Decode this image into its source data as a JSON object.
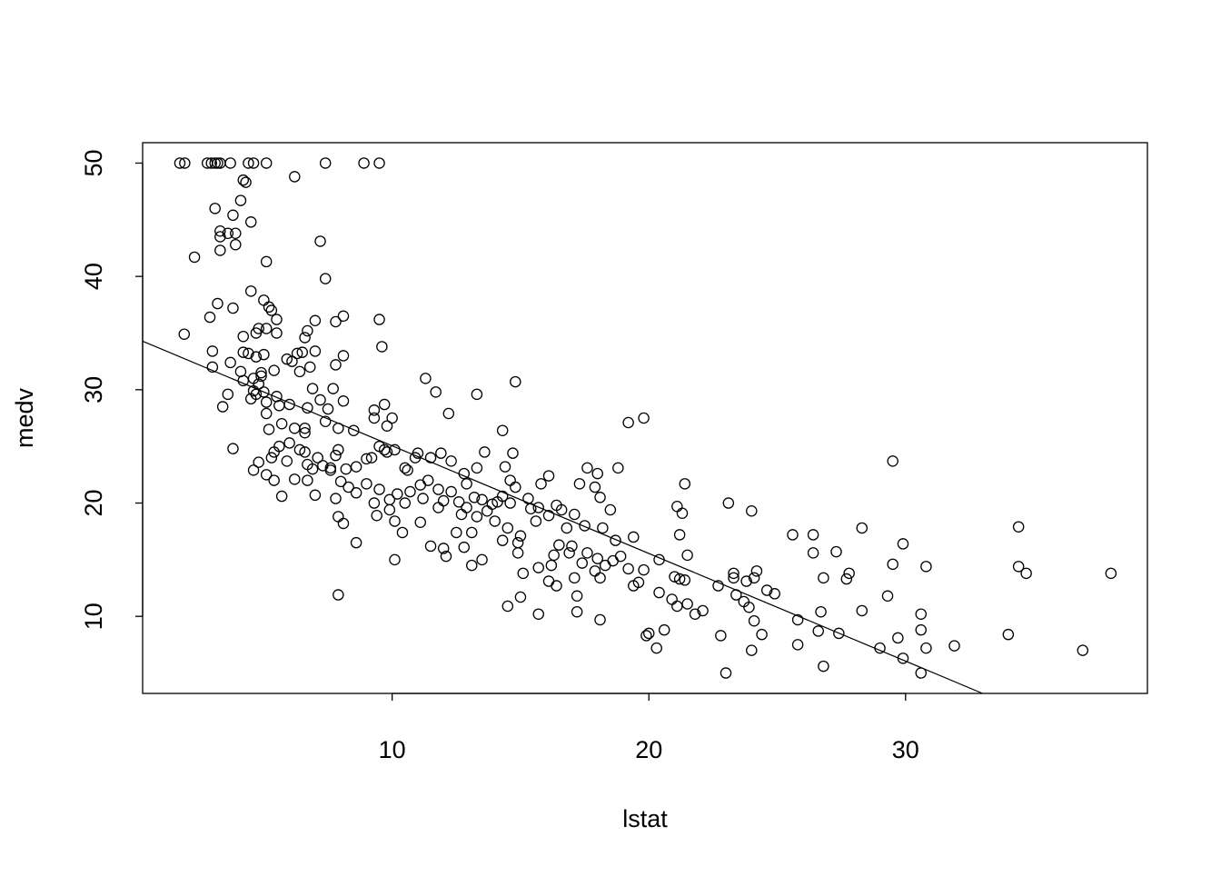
{
  "chart_data": {
    "type": "scatter",
    "title": "",
    "xlabel": "lstat",
    "ylabel": "medv",
    "xlim": [
      0.28,
      39.42
    ],
    "ylim": [
      3.2,
      51.8
    ],
    "xticks": [
      10,
      20,
      30
    ],
    "yticks": [
      10,
      20,
      30,
      40,
      50
    ],
    "grid": false,
    "marker": "open-circle",
    "colors": {
      "points": "#000000",
      "line": "#000000"
    },
    "regression_line": {
      "intercept": 34.55,
      "slope": -0.95
    },
    "points": [
      [
        1.73,
        50
      ],
      [
        1.92,
        50
      ],
      [
        2.8,
        50
      ],
      [
        2.96,
        50
      ],
      [
        3.1,
        50
      ],
      [
        3.2,
        50
      ],
      [
        3.3,
        50
      ],
      [
        3.7,
        50
      ],
      [
        4.4,
        50
      ],
      [
        4.6,
        50
      ],
      [
        5.1,
        50
      ],
      [
        7.4,
        50
      ],
      [
        8.9,
        50
      ],
      [
        9.5,
        50
      ],
      [
        4.2,
        48.5
      ],
      [
        4.3,
        48.3
      ],
      [
        6.2,
        48.8
      ],
      [
        4.1,
        46.7
      ],
      [
        3.1,
        46.0
      ],
      [
        3.8,
        45.4
      ],
      [
        4.5,
        44.8
      ],
      [
        3.3,
        44.0
      ],
      [
        3.3,
        43.5
      ],
      [
        3.6,
        43.8
      ],
      [
        3.9,
        43.8
      ],
      [
        3.9,
        42.8
      ],
      [
        3.3,
        42.3
      ],
      [
        2.3,
        41.7
      ],
      [
        7.2,
        43.1
      ],
      [
        5.1,
        41.3
      ],
      [
        7.4,
        39.8
      ],
      [
        4.5,
        38.7
      ],
      [
        5.0,
        37.9
      ],
      [
        3.2,
        37.6
      ],
      [
        5.2,
        37.3
      ],
      [
        3.8,
        37.2
      ],
      [
        5.3,
        37.0
      ],
      [
        2.9,
        36.4
      ],
      [
        5.5,
        36.2
      ],
      [
        7.0,
        36.1
      ],
      [
        7.8,
        36.0
      ],
      [
        8.1,
        36.5
      ],
      [
        9.5,
        36.2
      ],
      [
        1.9,
        34.9
      ],
      [
        4.2,
        34.7
      ],
      [
        4.7,
        35.0
      ],
      [
        4.8,
        35.4
      ],
      [
        5.1,
        35.4
      ],
      [
        5.5,
        35.0
      ],
      [
        6.7,
        35.2
      ],
      [
        6.6,
        34.6
      ],
      [
        9.6,
        33.8
      ],
      [
        3.0,
        33.4
      ],
      [
        4.2,
        33.3
      ],
      [
        4.4,
        33.2
      ],
      [
        5.0,
        33.1
      ],
      [
        6.3,
        33.2
      ],
      [
        6.5,
        33.3
      ],
      [
        7.0,
        33.4
      ],
      [
        8.1,
        33.0
      ],
      [
        4.7,
        32.9
      ],
      [
        5.9,
        32.7
      ],
      [
        6.1,
        32.5
      ],
      [
        3.7,
        32.4
      ],
      [
        3.0,
        32.0
      ],
      [
        4.1,
        31.6
      ],
      [
        4.9,
        31.5
      ],
      [
        5.4,
        31.7
      ],
      [
        6.8,
        32.0
      ],
      [
        6.4,
        31.6
      ],
      [
        7.8,
        32.2
      ],
      [
        4.6,
        31.0
      ],
      [
        4.9,
        31.2
      ],
      [
        4.2,
        30.8
      ],
      [
        14.8,
        30.7
      ],
      [
        11.3,
        31.0
      ],
      [
        4.8,
        30.5
      ],
      [
        4.6,
        29.9
      ],
      [
        4.7,
        29.6
      ],
      [
        3.6,
        29.6
      ],
      [
        5.0,
        29.8
      ],
      [
        5.5,
        29.4
      ],
      [
        6.9,
        30.1
      ],
      [
        7.2,
        29.1
      ],
      [
        8.1,
        29.0
      ],
      [
        7.7,
        30.1
      ],
      [
        11.7,
        29.8
      ],
      [
        13.3,
        29.6
      ],
      [
        3.4,
        28.5
      ],
      [
        4.5,
        29.2
      ],
      [
        5.1,
        28.9
      ],
      [
        5.6,
        28.6
      ],
      [
        6.0,
        28.7
      ],
      [
        6.7,
        28.4
      ],
      [
        7.5,
        28.3
      ],
      [
        9.3,
        28.2
      ],
      [
        9.7,
        28.7
      ],
      [
        9.3,
        27.5
      ],
      [
        10.0,
        27.5
      ],
      [
        12.2,
        27.9
      ],
      [
        19.2,
        27.1
      ],
      [
        19.8,
        27.5
      ],
      [
        5.1,
        27.9
      ],
      [
        5.7,
        27.0
      ],
      [
        7.4,
        27.2
      ],
      [
        7.9,
        26.6
      ],
      [
        6.6,
        26.6
      ],
      [
        6.6,
        26.2
      ],
      [
        9.8,
        26.8
      ],
      [
        8.5,
        26.4
      ],
      [
        14.3,
        26.4
      ],
      [
        5.2,
        26.5
      ],
      [
        6.2,
        26.6
      ],
      [
        3.8,
        24.8
      ],
      [
        4.8,
        23.6
      ],
      [
        4.6,
        22.9
      ],
      [
        5.3,
        24.0
      ],
      [
        5.4,
        24.5
      ],
      [
        5.6,
        25.0
      ],
      [
        5.9,
        23.7
      ],
      [
        6.0,
        25.3
      ],
      [
        6.4,
        24.7
      ],
      [
        6.6,
        24.5
      ],
      [
        6.7,
        23.4
      ],
      [
        6.9,
        23.0
      ],
      [
        7.1,
        24.0
      ],
      [
        7.3,
        23.3
      ],
      [
        7.6,
        23.1
      ],
      [
        7.9,
        24.7
      ],
      [
        7.8,
        24.2
      ],
      [
        8.2,
        23.0
      ],
      [
        8.6,
        23.2
      ],
      [
        9.0,
        23.9
      ],
      [
        9.5,
        25.0
      ],
      [
        9.7,
        24.7
      ],
      [
        10.1,
        24.7
      ],
      [
        10.5,
        23.1
      ],
      [
        10.9,
        24.0
      ],
      [
        11.0,
        24.4
      ],
      [
        11.5,
        24.0
      ],
      [
        11.9,
        24.4
      ],
      [
        12.3,
        23.7
      ],
      [
        12.8,
        22.6
      ],
      [
        13.3,
        23.1
      ],
      [
        13.6,
        24.5
      ],
      [
        14.7,
        24.4
      ],
      [
        14.4,
        23.2
      ],
      [
        14.6,
        22.0
      ],
      [
        5.1,
        22.5
      ],
      [
        5.4,
        22.0
      ],
      [
        5.7,
        20.6
      ],
      [
        6.2,
        22.1
      ],
      [
        6.7,
        22.0
      ],
      [
        7.0,
        20.7
      ],
      [
        7.6,
        22.9
      ],
      [
        7.8,
        20.4
      ],
      [
        8.0,
        21.9
      ],
      [
        8.3,
        21.4
      ],
      [
        8.6,
        20.9
      ],
      [
        9.0,
        21.7
      ],
      [
        9.3,
        20.0
      ],
      [
        9.5,
        21.2
      ],
      [
        9.9,
        20.3
      ],
      [
        10.2,
        20.8
      ],
      [
        10.5,
        20.0
      ],
      [
        10.7,
        21.0
      ],
      [
        11.2,
        20.4
      ],
      [
        11.4,
        22.0
      ],
      [
        11.8,
        21.2
      ],
      [
        12.0,
        20.2
      ],
      [
        12.3,
        21.0
      ],
      [
        12.6,
        20.1
      ],
      [
        12.9,
        21.7
      ],
      [
        13.2,
        20.5
      ],
      [
        13.5,
        20.3
      ],
      [
        13.9,
        19.9
      ],
      [
        14.3,
        20.6
      ],
      [
        14.6,
        20.0
      ],
      [
        14.8,
        21.4
      ],
      [
        15.3,
        20.4
      ],
      [
        15.7,
        19.6
      ],
      [
        15.8,
        21.7
      ],
      [
        16.1,
        22.4
      ],
      [
        16.4,
        19.8
      ],
      [
        16.6,
        19.4
      ],
      [
        17.1,
        19.0
      ],
      [
        17.3,
        21.7
      ],
      [
        17.6,
        23.1
      ],
      [
        18.0,
        22.6
      ],
      [
        17.9,
        21.4
      ],
      [
        18.1,
        20.5
      ],
      [
        18.8,
        23.1
      ],
      [
        18.5,
        19.4
      ],
      [
        7.9,
        18.8
      ],
      [
        8.1,
        18.2
      ],
      [
        8.6,
        16.5
      ],
      [
        9.4,
        18.9
      ],
      [
        9.9,
        19.4
      ],
      [
        10.1,
        18.4
      ],
      [
        10.4,
        17.4
      ],
      [
        10.1,
        15.0
      ],
      [
        11.1,
        18.3
      ],
      [
        11.5,
        16.2
      ],
      [
        12.0,
        16.0
      ],
      [
        12.1,
        15.3
      ],
      [
        12.5,
        17.4
      ],
      [
        12.8,
        16.1
      ],
      [
        13.1,
        14.5
      ],
      [
        13.5,
        15.0
      ],
      [
        13.1,
        17.4
      ],
      [
        14.0,
        18.4
      ],
      [
        14.3,
        16.7
      ],
      [
        14.5,
        17.8
      ],
      [
        14.9,
        16.5
      ],
      [
        14.9,
        15.6
      ],
      [
        15.1,
        13.8
      ],
      [
        15.0,
        11.7
      ],
      [
        14.5,
        10.9
      ],
      [
        15.7,
        10.2
      ],
      [
        15.7,
        14.3
      ],
      [
        16.1,
        13.1
      ],
      [
        16.2,
        14.5
      ],
      [
        16.4,
        12.7
      ],
      [
        16.5,
        16.3
      ],
      [
        16.9,
        15.6
      ],
      [
        17.1,
        13.4
      ],
      [
        17.2,
        11.8
      ],
      [
        17.2,
        10.4
      ],
      [
        17.4,
        14.7
      ],
      [
        17.6,
        15.6
      ],
      [
        17.9,
        14.0
      ],
      [
        18.1,
        13.4
      ],
      [
        18.3,
        14.5
      ],
      [
        18.1,
        9.7
      ],
      [
        18.6,
        14.9
      ],
      [
        18.7,
        16.7
      ],
      [
        19.4,
        12.7
      ],
      [
        19.6,
        13.0
      ],
      [
        19.8,
        14.1
      ],
      [
        19.9,
        8.3
      ],
      [
        20.0,
        8.5
      ],
      [
        20.4,
        12.1
      ],
      [
        20.4,
        15.0
      ],
      [
        20.6,
        8.8
      ],
      [
        20.3,
        7.2
      ],
      [
        20.9,
        11.5
      ],
      [
        21.1,
        10.9
      ],
      [
        21.0,
        13.5
      ],
      [
        21.2,
        13.3
      ],
      [
        21.4,
        13.2
      ],
      [
        21.5,
        11.1
      ],
      [
        21.5,
        15.4
      ],
      [
        21.2,
        17.2
      ],
      [
        21.3,
        19.1
      ],
      [
        21.1,
        19.7
      ],
      [
        21.4,
        21.7
      ],
      [
        21.8,
        10.2
      ],
      [
        22.1,
        10.5
      ],
      [
        22.7,
        12.7
      ],
      [
        22.8,
        8.3
      ],
      [
        23.0,
        5.0
      ],
      [
        23.3,
        13.8
      ],
      [
        23.3,
        13.4
      ],
      [
        23.4,
        11.9
      ],
      [
        23.1,
        20.0
      ],
      [
        23.7,
        11.3
      ],
      [
        23.9,
        10.8
      ],
      [
        23.8,
        13.1
      ],
      [
        24.1,
        9.6
      ],
      [
        24.0,
        7.0
      ],
      [
        24.1,
        13.4
      ],
      [
        24.2,
        14.0
      ],
      [
        24.4,
        8.4
      ],
      [
        24.6,
        12.3
      ],
      [
        24.0,
        19.3
      ],
      [
        24.9,
        12.0
      ],
      [
        25.6,
        17.2
      ],
      [
        25.8,
        9.7
      ],
      [
        25.8,
        7.5
      ],
      [
        26.4,
        17.2
      ],
      [
        26.4,
        15.6
      ],
      [
        26.6,
        8.7
      ],
      [
        26.7,
        10.4
      ],
      [
        26.8,
        13.4
      ],
      [
        26.8,
        5.6
      ],
      [
        27.3,
        15.7
      ],
      [
        27.4,
        8.5
      ],
      [
        27.7,
        13.3
      ],
      [
        27.8,
        13.8
      ],
      [
        28.3,
        17.8
      ],
      [
        28.3,
        10.5
      ],
      [
        29.0,
        7.2
      ],
      [
        29.3,
        11.8
      ],
      [
        29.5,
        14.6
      ],
      [
        29.5,
        23.7
      ],
      [
        29.7,
        8.1
      ],
      [
        29.9,
        16.4
      ],
      [
        29.9,
        6.3
      ],
      [
        30.6,
        5.0
      ],
      [
        30.6,
        10.2
      ],
      [
        30.6,
        8.8
      ],
      [
        30.8,
        7.2
      ],
      [
        30.8,
        14.4
      ],
      [
        31.9,
        7.4
      ],
      [
        34.0,
        8.4
      ],
      [
        34.4,
        17.9
      ],
      [
        34.4,
        14.4
      ],
      [
        34.7,
        13.8
      ],
      [
        36.9,
        7.0
      ],
      [
        38.0,
        13.8
      ],
      [
        7.9,
        11.9
      ],
      [
        13.3,
        18.8
      ],
      [
        12.7,
        19.0
      ],
      [
        11.8,
        19.6
      ],
      [
        14.1,
        20.1
      ],
      [
        15.6,
        18.4
      ],
      [
        16.1,
        18.9
      ],
      [
        16.8,
        17.8
      ],
      [
        17.5,
        18.0
      ],
      [
        18.2,
        17.8
      ],
      [
        18.9,
        15.3
      ],
      [
        19.4,
        17.0
      ],
      [
        19.2,
        14.2
      ],
      [
        9.2,
        24.0
      ],
      [
        9.8,
        24.5
      ],
      [
        10.6,
        22.9
      ],
      [
        11.1,
        21.6
      ],
      [
        12.9,
        19.6
      ],
      [
        13.7,
        19.3
      ],
      [
        15.0,
        17.1
      ],
      [
        15.4,
        19.5
      ],
      [
        16.3,
        15.4
      ],
      [
        17.0,
        16.2
      ],
      [
        18.0,
        15.1
      ]
    ]
  }
}
